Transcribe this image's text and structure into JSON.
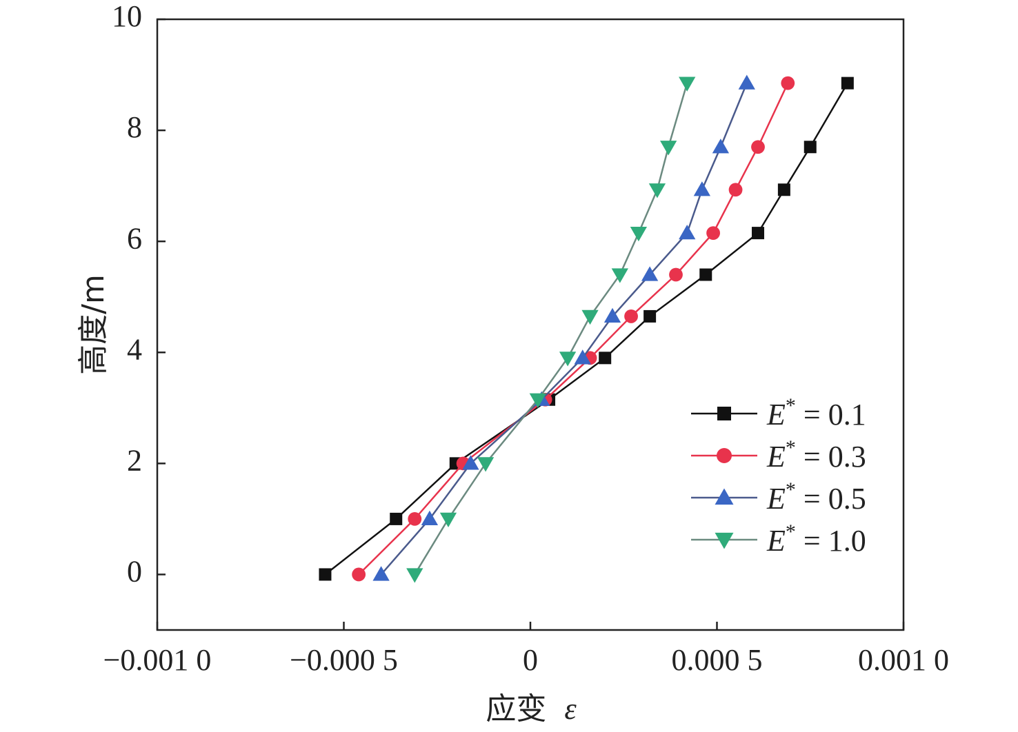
{
  "chart_data": {
    "type": "line",
    "title": "",
    "xlabel": "应变",
    "xlabel_symbol": "ε",
    "ylabel": "高度/m",
    "xlim": [
      -0.001,
      0.001
    ],
    "ylim": [
      -1,
      10
    ],
    "x_ticks": [
      -0.001,
      -0.0005,
      0,
      0.0005,
      0.001
    ],
    "x_tick_labels": [
      "−0.001 0",
      "−0.000 5",
      "0",
      "0.000 5",
      "0.001 0"
    ],
    "y_ticks": [
      0,
      2,
      4,
      6,
      8,
      10
    ],
    "y_tick_labels": [
      "0",
      "2",
      "4",
      "6",
      "8",
      "10"
    ],
    "grid": false,
    "legend_position": "right",
    "legend_symbol": "E",
    "legend_sup": "*",
    "legend_eq": " = ",
    "y": [
      0,
      1,
      2,
      3.15,
      3.9,
      4.65,
      5.4,
      6.15,
      6.93,
      7.7,
      8.85
    ],
    "series": [
      {
        "name": "0.1",
        "marker": "square",
        "color": "#111111",
        "line_color": "#111111",
        "x": [
          -0.00055,
          -0.00036,
          -0.0002,
          5e-05,
          0.0002,
          0.00032,
          0.00047,
          0.00061,
          0.00068,
          0.00075,
          0.00085
        ]
      },
      {
        "name": "0.3",
        "marker": "circle",
        "color": "#e8334c",
        "line_color": "#e8334c",
        "x": [
          -0.00046,
          -0.00031,
          -0.00018,
          4e-05,
          0.00016,
          0.00027,
          0.00039,
          0.00049,
          0.00055,
          0.00061,
          0.00069
        ]
      },
      {
        "name": "0.5",
        "marker": "triangle-up",
        "color": "#3a66c4",
        "line_color": "#4a5a8c",
        "x": [
          -0.0004,
          -0.00027,
          -0.00016,
          3e-05,
          0.00014,
          0.00022,
          0.00032,
          0.00042,
          0.00046,
          0.00051,
          0.00058
        ]
      },
      {
        "name": "1.0",
        "marker": "triangle-down",
        "color": "#2fab7a",
        "line_color": "#6b8a80",
        "x": [
          -0.00031,
          -0.00022,
          -0.00012,
          2e-05,
          0.0001,
          0.00016,
          0.00024,
          0.00029,
          0.00034,
          0.00037,
          0.00042
        ]
      }
    ]
  }
}
